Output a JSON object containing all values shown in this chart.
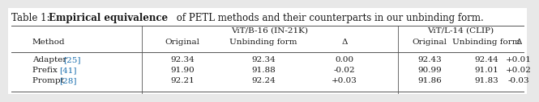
{
  "title_before": "Table 1: ",
  "title_bold": "Empirical equivalence",
  "title_after": " of PETL methods and their counterparts in our unbinding form.",
  "group1_label": "ViT/B-16 (IN-21K)",
  "group2_label": "ViT/L-14 (CLIP)",
  "col_headers": [
    "Method",
    "Original",
    "Unbinding form",
    "Δ",
    "Original",
    "Unbinding form",
    "Δ"
  ],
  "rows": [
    [
      "Adapter",
      "25",
      "92.34",
      "92.34",
      "0.00",
      "92.43",
      "92.44",
      "+0.01"
    ],
    [
      "Prefix",
      "41",
      "91.90",
      "91.88",
      "-0.02",
      "90.99",
      "91.01",
      "+0.02"
    ],
    [
      "Prompt",
      "28",
      "92.21",
      "92.24",
      "+0.03",
      "91.86",
      "91.83",
      "-0.03"
    ]
  ],
  "bg_color": "#ffffff",
  "text_color": "#1a1a1a",
  "ref_color": "#1a6faf",
  "font_size": 7.5,
  "title_font_size": 8.5,
  "line_color": "#555555",
  "fig_bg": "#e8e8e8"
}
